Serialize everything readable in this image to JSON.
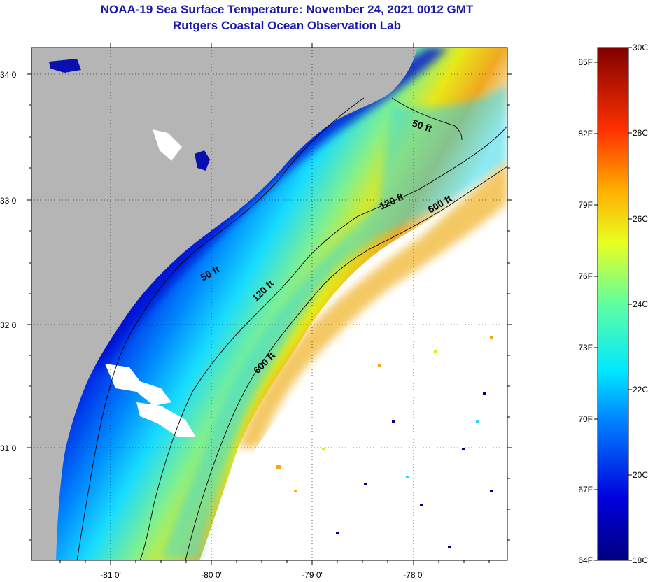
{
  "title": {
    "line1": "NOAA-19 Sea Surface Temperature:  November 24, 2021 0012 GMT",
    "line2": "Rutgers Coastal Ocean Observation Lab"
  },
  "map": {
    "lat_labels": [
      "34 0'",
      "33 0'",
      "32 0'",
      "31 0'"
    ],
    "lon_labels": [
      "-81 0'",
      "-80 0'",
      "-79 0'",
      "-78 0'"
    ],
    "contour_labels": [
      "50 ft",
      "120 ft",
      "600 ft",
      "50 ft",
      "120 ft",
      "600 ft"
    ]
  },
  "colorbar": {
    "fahrenheit_labels": [
      "85F",
      "82F",
      "79F",
      "76F",
      "73F",
      "70F",
      "67F",
      "64F"
    ],
    "celsius_labels": [
      "30C",
      "28C",
      "26C",
      "24C",
      "22C",
      "20C",
      "18C"
    ]
  },
  "colors": {
    "land": "#b5b5b5",
    "title": "#1a1aa8",
    "cold": "#00008c",
    "warm": "#800000"
  }
}
